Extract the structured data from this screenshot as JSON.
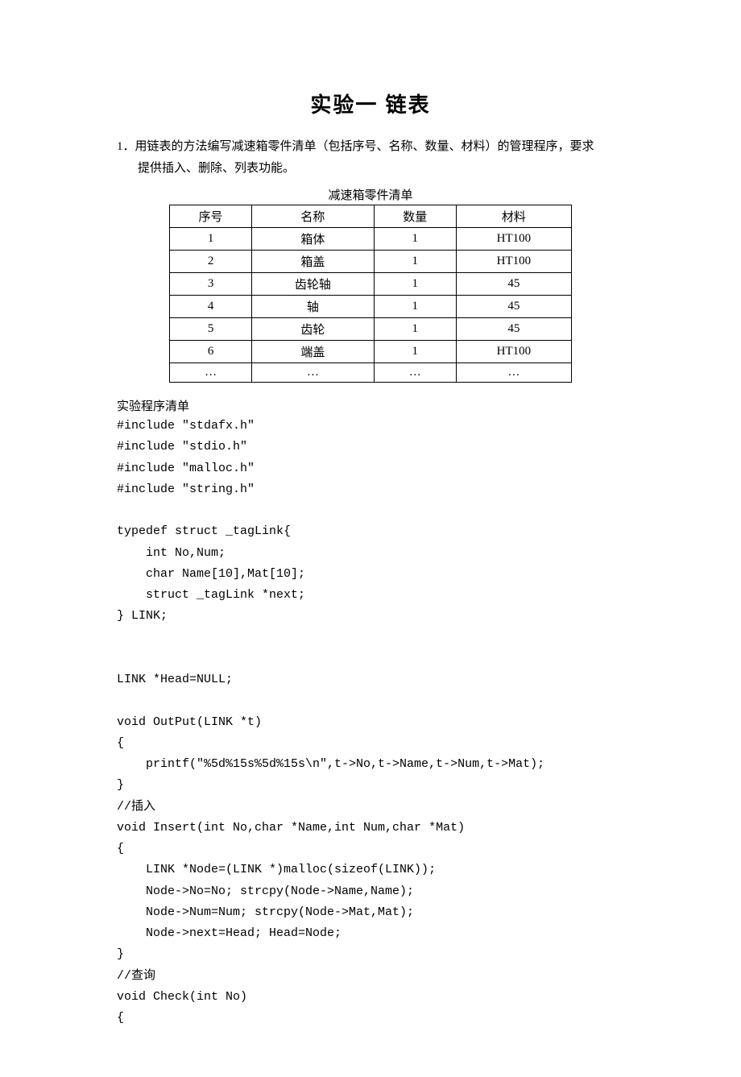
{
  "title": "实验一   链表",
  "problem": {
    "line1": "1．用链表的方法编写减速箱零件清单（包括序号、名称、数量、材料）的管理程序，要求",
    "line2": "提供插入、删除、列表功能。"
  },
  "table": {
    "caption": "减速箱零件清单",
    "headers": [
      "序号",
      "名称",
      "数量",
      "材料"
    ],
    "rows": [
      [
        "1",
        "箱体",
        "1",
        "HT100"
      ],
      [
        "2",
        "箱盖",
        "1",
        "HT100"
      ],
      [
        "3",
        "齿轮轴",
        "1",
        "45"
      ],
      [
        "4",
        "轴",
        "1",
        "45"
      ],
      [
        "5",
        "齿轮",
        "1",
        "45"
      ],
      [
        "6",
        "端盖",
        "1",
        "HT100"
      ],
      [
        "…",
        "…",
        "…",
        "…"
      ]
    ]
  },
  "code_heading": "实验程序清单",
  "code_lines": [
    "#include \"stdafx.h\"",
    "#include \"stdio.h\"",
    "#include \"malloc.h\"",
    "#include \"string.h\"",
    "",
    "typedef struct _tagLink{",
    "    int No,Num;",
    "    char Name[10],Mat[10];",
    "    struct _tagLink *next;",
    "} LINK;",
    "",
    "",
    "LINK *Head=NULL;",
    "",
    "void OutPut(LINK *t)",
    "{",
    "    printf(\"%5d%15s%5d%15s\\n\",t->No,t->Name,t->Num,t->Mat);",
    "}",
    "//插入",
    "void Insert(int No,char *Name,int Num,char *Mat)",
    "{",
    "    LINK *Node=(LINK *)malloc(sizeof(LINK));",
    "    Node->No=No; strcpy(Node->Name,Name);",
    "    Node->Num=Num; strcpy(Node->Mat,Mat);",
    "    Node->next=Head; Head=Node;",
    "}",
    "//查询",
    "void Check(int No)",
    "{"
  ]
}
